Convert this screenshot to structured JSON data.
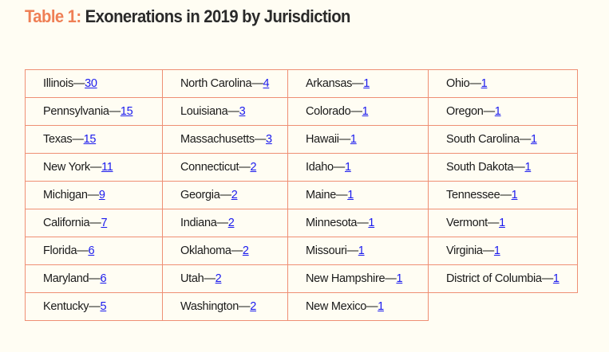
{
  "title": {
    "prefix": "Table 1:",
    "main": "Exonerations in 2019 by Jurisdiction"
  },
  "separator": "—",
  "colors": {
    "accent": "#ef7f55",
    "border": "#ef8f74",
    "link": "#1a1aee",
    "background": "#fffdf3"
  },
  "rows": [
    [
      {
        "name": "Illinois",
        "count": "30"
      },
      {
        "name": "North Carolina",
        "count": "4"
      },
      {
        "name": "Arkansas",
        "count": "1"
      },
      {
        "name": "Ohio",
        "count": "1"
      }
    ],
    [
      {
        "name": "Pennsylvania",
        "count": "15"
      },
      {
        "name": "Louisiana",
        "count": "3"
      },
      {
        "name": "Colorado",
        "count": "1"
      },
      {
        "name": "Oregon",
        "count": "1"
      }
    ],
    [
      {
        "name": "Texas",
        "count": "15"
      },
      {
        "name": "Massachusetts",
        "count": "3"
      },
      {
        "name": "Hawaii",
        "count": "1"
      },
      {
        "name": "South Carolina",
        "count": "1"
      }
    ],
    [
      {
        "name": "New York",
        "count": "11"
      },
      {
        "name": "Connecticut",
        "count": "2"
      },
      {
        "name": "Idaho",
        "count": "1"
      },
      {
        "name": "South Dakota",
        "count": "1"
      }
    ],
    [
      {
        "name": "Michigan",
        "count": "9"
      },
      {
        "name": "Georgia",
        "count": "2"
      },
      {
        "name": "Maine",
        "count": "1"
      },
      {
        "name": "Tennessee",
        "count": "1"
      }
    ],
    [
      {
        "name": "California",
        "count": "7"
      },
      {
        "name": "Indiana",
        "count": "2"
      },
      {
        "name": "Minnesota",
        "count": "1"
      },
      {
        "name": "Vermont",
        "count": "1"
      }
    ],
    [
      {
        "name": "Florida",
        "count": "6"
      },
      {
        "name": "Oklahoma",
        "count": "2"
      },
      {
        "name": "Missouri",
        "count": "1"
      },
      {
        "name": "Virginia",
        "count": "1"
      }
    ],
    [
      {
        "name": "Maryland",
        "count": "6"
      },
      {
        "name": "Utah",
        "count": "2"
      },
      {
        "name": "New Hampshire",
        "count": "1"
      },
      {
        "name": "District of Columbia",
        "count": "1"
      }
    ],
    [
      {
        "name": "Kentucky",
        "count": "5"
      },
      {
        "name": "Washington",
        "count": "2"
      },
      {
        "name": "New Mexico",
        "count": "1"
      }
    ]
  ]
}
